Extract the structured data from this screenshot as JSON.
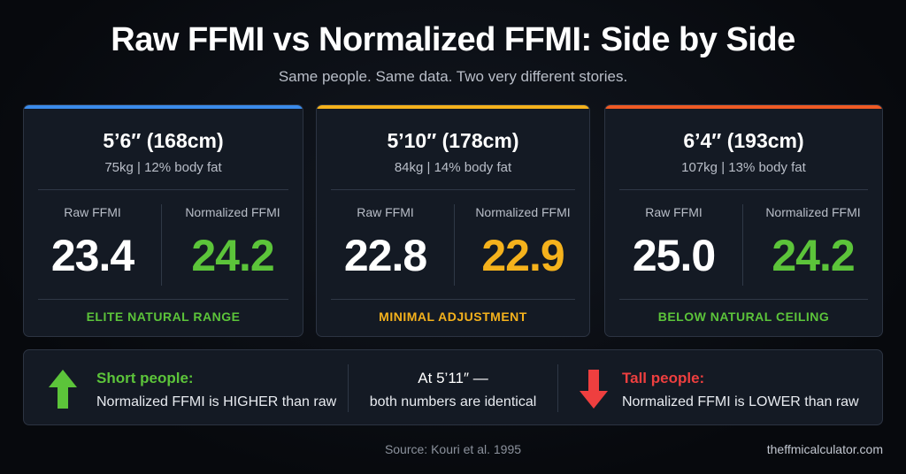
{
  "title": "Raw FFMI vs Normalized FFMI: Side by Side",
  "subtitle": "Same people. Same data. Two very different stories.",
  "labels": {
    "raw": "Raw FFMI",
    "normalized": "Normalized FFMI"
  },
  "colors": {
    "blue": "#3b8bea",
    "yellow": "#f5b21c",
    "orange": "#ef5a24",
    "green": "#5cc43a",
    "red": "#ee3f3f"
  },
  "cards": [
    {
      "height": "5’6″ (168cm)",
      "stats": "75kg  |  12% body fat",
      "raw": "23.4",
      "normalized": "24.2",
      "verdict": "ELITE NATURAL RANGE",
      "accent": "#3b8bea",
      "value_color": "#5cc43a"
    },
    {
      "height": "5’10″ (178cm)",
      "stats": "84kg  |  14% body fat",
      "raw": "22.8",
      "normalized": "22.9",
      "verdict": "MINIMAL ADJUSTMENT",
      "accent": "#f5b21c",
      "value_color": "#f5b21c"
    },
    {
      "height": "6’4″ (193cm)",
      "stats": "107kg  |  13% body fat",
      "raw": "25.0",
      "normalized": "24.2",
      "verdict": "BELOW NATURAL CEILING",
      "accent": "#ef5a24",
      "value_color": "#5cc43a"
    }
  ],
  "bottom": {
    "short": {
      "title": "Short people:",
      "text": "Normalized FFMI is HIGHER than raw",
      "icon": "arrow-up-icon"
    },
    "middle": {
      "title": "At 5’11″ —",
      "text": "both numbers are identical"
    },
    "tall": {
      "title": "Tall people:",
      "text": "Normalized FFMI is LOWER than raw",
      "icon": "arrow-down-icon"
    }
  },
  "source": "Source: Kouri et al. 1995",
  "site": "theffmicalculator.com"
}
